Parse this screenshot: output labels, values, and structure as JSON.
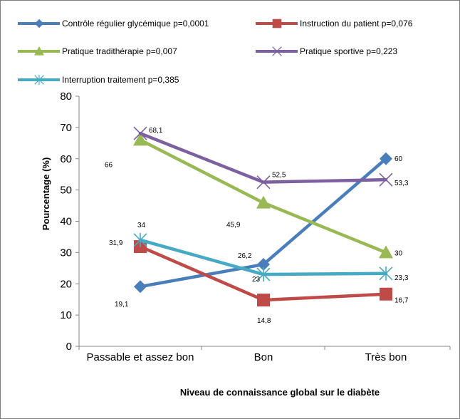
{
  "chart_data": {
    "type": "line",
    "xlabel": "Niveau de connaissance global sur le diabète",
    "ylabel": "Pourcentage (%)",
    "categories": [
      "Passable et assez bon",
      "Bon",
      "Très bon"
    ],
    "ylim": [
      0,
      80
    ],
    "yticks": [
      "0",
      "10",
      "20",
      "30",
      "40",
      "50",
      "60",
      "70",
      "80"
    ],
    "grid": false,
    "legend_position": "top",
    "series": [
      {
        "name": "Contrôle régulier glycémique p=0,0001",
        "values": [
          19.1,
          26.2,
          60
        ],
        "labels": [
          "19,1",
          "26,2",
          "60"
        ],
        "color": "#4a7ebb",
        "marker": "diamond"
      },
      {
        "name": "Instruction du patient p=0,076",
        "values": [
          31.9,
          14.8,
          16.7
        ],
        "labels": [
          "31,9",
          "14,8",
          "16,7"
        ],
        "color": "#be4b48",
        "marker": "square"
      },
      {
        "name": "Pratique tradithérapie p=0,007",
        "values": [
          66,
          45.9,
          30
        ],
        "labels": [
          "66",
          "45,9",
          "30"
        ],
        "color": "#98b954",
        "marker": "triangle"
      },
      {
        "name": "Pratique sportive p=0,223",
        "values": [
          68.1,
          52.5,
          53.3
        ],
        "labels": [
          "68,1",
          "52,5",
          "53,3"
        ],
        "color": "#7d60a0",
        "marker": "x"
      },
      {
        "name": "Interruption traitement p=0,385",
        "values": [
          34,
          23,
          23.3
        ],
        "labels": [
          "34",
          "23",
          "23,3"
        ],
        "color": "#46aac5",
        "marker": "star"
      }
    ]
  }
}
